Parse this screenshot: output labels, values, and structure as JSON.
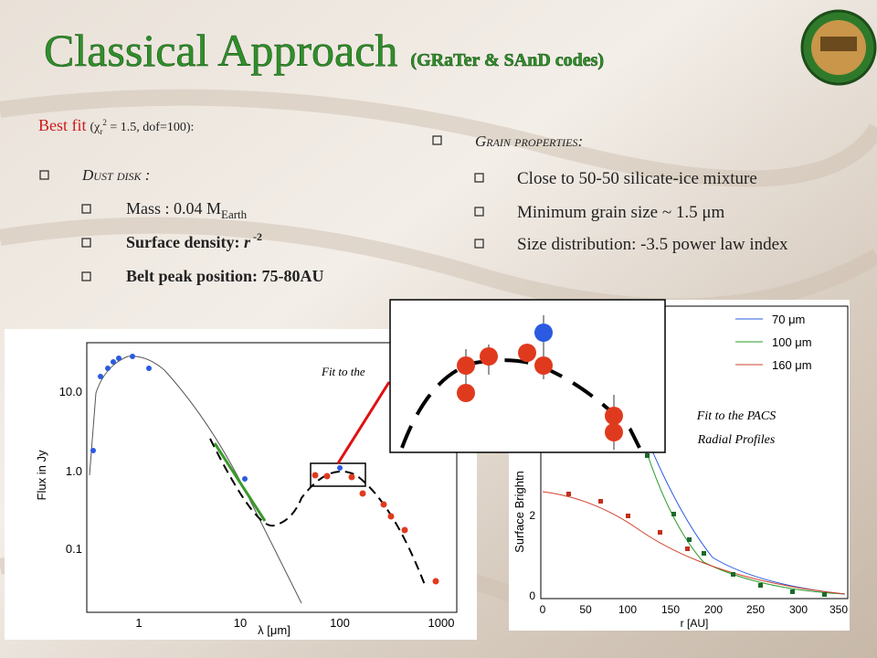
{
  "title": "Classical Approach",
  "subtitle": "(GRaTer & SAnD codes)",
  "best_fit": {
    "label": "Best fit",
    "open": "(χ",
    "sub": "r",
    "sup": "2",
    "rest": " = 1.5, dof=100):"
  },
  "dust_disk": {
    "heading": "Dust disk :",
    "mass": {
      "text": "Mass : 0.04 M",
      "sub": "Earth"
    },
    "density": {
      "text": "Surface density: ",
      "var": "r",
      "sup": " -2"
    },
    "peak": "Belt peak position: 75-80AU"
  },
  "grain": {
    "heading": "Grain properties:",
    "items": [
      "Close to 50-50 silicate-ice mixture",
      "Minimum grain size ~ 1.5 μm",
      "Size distribution: -3.5 power law index"
    ]
  },
  "sed_plot": {
    "ylabel": "Flux in Jy",
    "xlabel": "λ [μm]",
    "yticks": [
      "10.0",
      "1.0",
      "0.1"
    ],
    "xticks": [
      "1",
      "10",
      "100",
      "1000"
    ],
    "annotation": "Fit to the"
  },
  "radial_plot": {
    "legend": [
      "70 μm",
      "100 μm",
      "160 μm"
    ],
    "ylabel": "Surface Brightn",
    "xlabel": "r [AU]",
    "xticks": [
      "0",
      "50",
      "100",
      "150",
      "200",
      "250",
      "300",
      "350"
    ],
    "yticks": [
      "0",
      "2"
    ],
    "annotation": [
      "Fit to the PACS",
      "Radial Profiles"
    ]
  }
}
